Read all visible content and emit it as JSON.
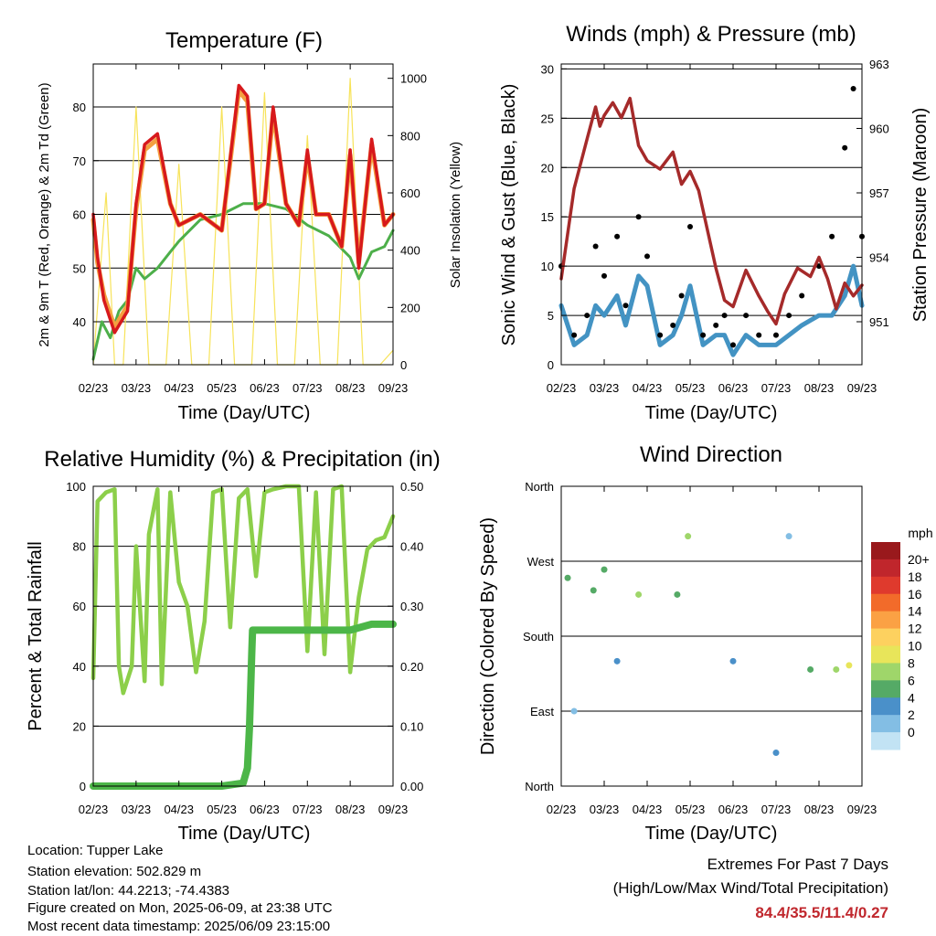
{
  "chart_data": [
    {
      "type": "line",
      "title": "Temperature (F)",
      "xlabel": "Time (Day/UTC)",
      "ylabel": "2m & 9m T (Red, Orange) & 2m Td (Green)",
      "y2label": "Solar Insolation (Yellow)",
      "x_ticks": [
        "02/23",
        "03/23",
        "04/23",
        "05/23",
        "06/23",
        "07/23",
        "08/23",
        "09/23"
      ],
      "ylim": [
        32,
        88
      ],
      "y_ticks": [
        40,
        50,
        60,
        70,
        80
      ],
      "y2lim": [
        0,
        1050
      ],
      "y2_ticks": [
        0,
        200,
        400,
        600,
        800,
        1000
      ],
      "grid": true,
      "series": [
        {
          "name": "2m T",
          "color": "#d7191c",
          "axis": "left",
          "x": [
            0.0,
            0.1,
            0.25,
            0.5,
            0.8,
            1.0,
            1.2,
            1.5,
            1.8,
            2.0,
            2.5,
            3.0,
            3.4,
            3.6,
            3.8,
            4.0,
            4.2,
            4.5,
            4.8,
            5.0,
            5.2,
            5.5,
            5.8,
            6.0,
            6.2,
            6.5,
            6.8,
            7.0
          ],
          "y": [
            60,
            52,
            44,
            38,
            42,
            62,
            73,
            75,
            62,
            58,
            60,
            57,
            84,
            82,
            61,
            62,
            80,
            62,
            58,
            72,
            60,
            60,
            54,
            72,
            50,
            74,
            58,
            60
          ]
        },
        {
          "name": "9m T",
          "color": "#f4a040",
          "axis": "left",
          "x": [
            0.0,
            0.1,
            0.25,
            0.5,
            0.8,
            1.0,
            1.2,
            1.5,
            1.8,
            2.0,
            2.5,
            3.0,
            3.4,
            3.6,
            3.8,
            4.0,
            4.2,
            4.5,
            4.8,
            5.0,
            5.2,
            5.5,
            5.8,
            6.0,
            6.2,
            6.5,
            6.8,
            7.0
          ],
          "y": [
            59,
            51,
            45,
            39,
            43,
            61,
            72,
            74,
            62,
            58,
            60,
            57,
            83,
            81,
            61,
            62,
            79,
            62,
            58,
            71,
            60,
            60,
            54,
            71,
            51,
            73,
            58,
            60
          ]
        },
        {
          "name": "2m Td",
          "color": "#4daf4a",
          "axis": "left",
          "x": [
            0.0,
            0.2,
            0.4,
            0.6,
            0.8,
            1.0,
            1.2,
            1.5,
            1.8,
            2.0,
            2.5,
            3.0,
            3.5,
            4.0,
            4.5,
            5.0,
            5.5,
            6.0,
            6.2,
            6.5,
            6.8,
            7.0
          ],
          "y": [
            33,
            40,
            37,
            42,
            44,
            50,
            48,
            50,
            53,
            55,
            59,
            60,
            62,
            62,
            61,
            58,
            56,
            52,
            48,
            53,
            54,
            57
          ]
        },
        {
          "name": "Solar Insolation",
          "color": "#f7e35a",
          "axis": "right",
          "x": [
            0.0,
            0.3,
            0.5,
            0.7,
            1.0,
            1.3,
            1.5,
            1.7,
            2.0,
            2.3,
            2.5,
            2.7,
            3.0,
            3.3,
            3.5,
            3.7,
            4.0,
            4.3,
            4.5,
            4.7,
            5.0,
            5.3,
            5.5,
            5.7,
            6.0,
            6.3,
            6.5,
            6.7,
            7.0
          ],
          "y": [
            0,
            600,
            0,
            0,
            900,
            0,
            0,
            0,
            700,
            0,
            0,
            0,
            900,
            0,
            0,
            0,
            950,
            0,
            0,
            0,
            800,
            0,
            0,
            0,
            1000,
            0,
            0,
            0,
            50
          ]
        }
      ]
    },
    {
      "type": "line",
      "title": "Winds (mph) & Pressure (mb)",
      "xlabel": "Time (Day/UTC)",
      "ylabel": "Sonic Wind & Gust (Blue, Black)",
      "y2label": "Station Pressure (Maroon)",
      "x_ticks": [
        "02/23",
        "03/23",
        "04/23",
        "05/23",
        "06/23",
        "07/23",
        "08/23",
        "09/23"
      ],
      "ylim": [
        0,
        30.5
      ],
      "y_ticks": [
        0,
        5,
        10,
        15,
        20,
        25,
        30
      ],
      "y2lim": [
        949.0,
        963.0
      ],
      "y2_ticks": [
        951,
        954,
        957,
        960,
        963
      ],
      "grid": true,
      "series": [
        {
          "name": "Sonic Wind",
          "color": "#4393c3",
          "axis": "left",
          "x": [
            0.0,
            0.3,
            0.6,
            0.8,
            1.0,
            1.3,
            1.5,
            1.8,
            2.0,
            2.3,
            2.6,
            2.8,
            3.0,
            3.3,
            3.6,
            3.8,
            4.0,
            4.3,
            4.6,
            5.0,
            5.3,
            5.6,
            6.0,
            6.3,
            6.6,
            6.8,
            7.0
          ],
          "y": [
            6,
            2,
            3,
            6,
            5,
            7,
            4,
            9,
            8,
            2,
            3,
            5,
            8,
            2,
            3,
            3,
            1,
            3,
            2,
            2,
            3,
            4,
            5,
            5,
            7,
            10,
            6
          ]
        },
        {
          "name": "Gust",
          "color": "#000000",
          "axis": "left",
          "x": [
            0.0,
            0.3,
            0.6,
            0.8,
            1.0,
            1.3,
            1.5,
            1.8,
            2.0,
            2.3,
            2.6,
            2.8,
            3.0,
            3.3,
            3.6,
            3.8,
            4.0,
            4.3,
            4.6,
            5.0,
            5.3,
            5.6,
            6.0,
            6.3,
            6.6,
            6.8,
            7.0
          ],
          "y": [
            10,
            3,
            5,
            12,
            9,
            13,
            6,
            15,
            11,
            3,
            4,
            7,
            14,
            3,
            4,
            5,
            2,
            5,
            3,
            3,
            5,
            7,
            10,
            13,
            22,
            28,
            13
          ]
        },
        {
          "name": "Station Pressure",
          "color": "#a52a2a",
          "axis": "right",
          "x": [
            0.0,
            0.3,
            0.6,
            0.8,
            0.9,
            1.0,
            1.2,
            1.4,
            1.6,
            1.8,
            2.0,
            2.3,
            2.6,
            2.8,
            3.0,
            3.2,
            3.4,
            3.6,
            3.8,
            4.0,
            4.3,
            4.6,
            4.8,
            5.0,
            5.2,
            5.5,
            5.8,
            6.0,
            6.2,
            6.4,
            6.6,
            6.8,
            7.0
          ],
          "y": [
            953.0,
            957.2,
            959.5,
            961.0,
            960.1,
            960.6,
            961.2,
            960.5,
            961.4,
            959.2,
            958.5,
            958.1,
            958.9,
            957.4,
            958.0,
            957.1,
            955.3,
            953.5,
            952.0,
            951.7,
            953.4,
            952.2,
            951.5,
            950.9,
            952.3,
            953.5,
            953.1,
            954.0,
            953.0,
            951.6,
            952.8,
            952.2,
            952.7
          ]
        }
      ]
    },
    {
      "type": "line",
      "title": "Relative Humidity (%) & Precipitation (in)",
      "xlabel": "Time (Day/UTC)",
      "ylabel": "Percent & Total Rainfall",
      "x_ticks": [
        "02/23",
        "03/23",
        "04/23",
        "05/23",
        "06/23",
        "07/23",
        "08/23",
        "09/23"
      ],
      "ylim": [
        0,
        100
      ],
      "y_ticks": [
        0,
        20,
        40,
        60,
        80,
        100
      ],
      "y2lim": [
        0.0,
        0.5
      ],
      "y2_ticks": [
        "0.00",
        "0.10",
        "0.20",
        "0.30",
        "0.40",
        "0.50"
      ],
      "grid": true,
      "series": [
        {
          "name": "Relative Humidity",
          "color": "#8ccf4a",
          "axis": "left",
          "x": [
            0.0,
            0.1,
            0.3,
            0.5,
            0.6,
            0.7,
            0.9,
            1.0,
            1.2,
            1.3,
            1.5,
            1.6,
            1.8,
            2.0,
            2.2,
            2.4,
            2.6,
            2.8,
            3.0,
            3.2,
            3.4,
            3.6,
            3.8,
            4.0,
            4.2,
            4.5,
            4.8,
            5.0,
            5.2,
            5.4,
            5.6,
            5.8,
            6.0,
            6.2,
            6.4,
            6.6,
            6.8,
            7.0
          ],
          "y": [
            36,
            95,
            98,
            99,
            40,
            31,
            40,
            80,
            35,
            84,
            99,
            34,
            98,
            68,
            60,
            38,
            55,
            98,
            99,
            53,
            96,
            99,
            70,
            98,
            99,
            100,
            100,
            45,
            98,
            44,
            99,
            100,
            38,
            63,
            79,
            82,
            83,
            90
          ]
        },
        {
          "name": "Total Precipitation",
          "color": "#4cb648",
          "axis": "right",
          "x": [
            0.0,
            1.0,
            2.0,
            3.0,
            3.5,
            3.6,
            3.65,
            3.7,
            3.72,
            4.0,
            5.0,
            6.0,
            6.5,
            7.0
          ],
          "y": [
            0.0,
            0.0,
            0.0,
            0.0,
            0.005,
            0.03,
            0.1,
            0.22,
            0.26,
            0.26,
            0.26,
            0.26,
            0.27,
            0.27
          ]
        }
      ]
    },
    {
      "type": "scatter",
      "title": "Wind Direction",
      "xlabel": "Time (Day/UTC)",
      "ylabel": "Direction (Colored By Speed)",
      "x_ticks": [
        "02/23",
        "03/23",
        "04/23",
        "05/23",
        "06/23",
        "07/23",
        "08/23",
        "09/23"
      ],
      "y_ticks": [
        "North",
        "West",
        "South",
        "East",
        "North"
      ],
      "ylim": [
        0,
        360
      ],
      "grid": true,
      "colorbar": {
        "title": "mph",
        "labels": [
          "20+",
          "18",
          "16",
          "14",
          "12",
          "10",
          "8",
          "6",
          "4",
          "2",
          "0"
        ],
        "colors": [
          "#99191c",
          "#c0262c",
          "#df3a2d",
          "#f26b2a",
          "#fba144",
          "#fdd15f",
          "#e8e55a",
          "#9fd66a",
          "#55aa66",
          "#4a90c9",
          "#83bee4",
          "#c2e3f4"
        ]
      },
      "clusters": [
        {
          "x": 0.15,
          "dir": 250,
          "speed": 6
        },
        {
          "x": 0.3,
          "dir": 90,
          "speed": 2
        },
        {
          "x": 0.75,
          "dir": 235,
          "speed": 5
        },
        {
          "x": 1.0,
          "dir": 260,
          "speed": 6
        },
        {
          "x": 1.3,
          "dir": 150,
          "speed": 3
        },
        {
          "x": 1.8,
          "dir": 230,
          "speed": 8
        },
        {
          "x": 2.7,
          "dir": 230,
          "speed": 5
        },
        {
          "x": 2.95,
          "dir": 300,
          "speed": 7
        },
        {
          "x": 4.0,
          "dir": 150,
          "speed": 3
        },
        {
          "x": 5.0,
          "dir": 40,
          "speed": 4
        },
        {
          "x": 5.3,
          "dir": 300,
          "speed": 1
        },
        {
          "x": 5.8,
          "dir": 140,
          "speed": 5
        },
        {
          "x": 6.4,
          "dir": 140,
          "speed": 8
        },
        {
          "x": 6.7,
          "dir": 145,
          "speed": 9
        }
      ]
    }
  ],
  "info": {
    "location": "Location: Tupper Lake",
    "elevation": "Station elevation: 502.829 m",
    "latlon": "Station lat/lon: 44.2213; -74.4383",
    "created": "Figure created on Mon, 2025-06-09, at 23:38 UTC",
    "recent": "Most recent data timestamp: 2025/06/09 23:15:00"
  },
  "extremes": {
    "heading": "Extremes For Past 7 Days",
    "subheading": "(High/Low/Max Wind/Total Precipitation)",
    "values": "84.4/35.5/11.4/0.27"
  }
}
